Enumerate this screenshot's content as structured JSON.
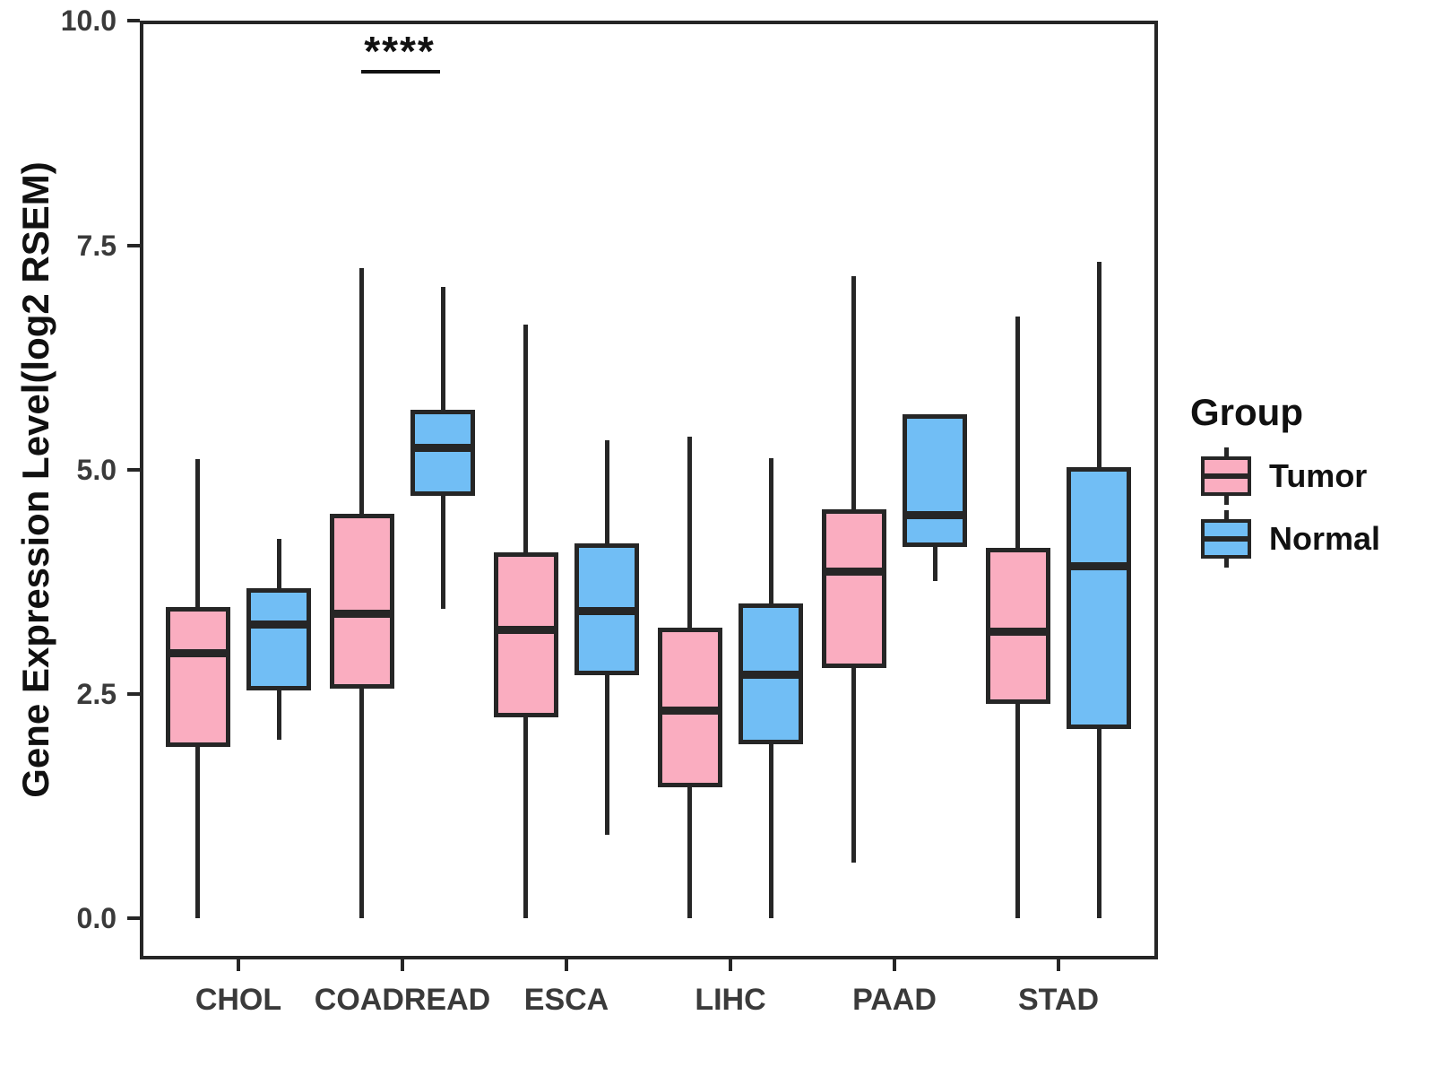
{
  "chart_data": {
    "type": "boxplot",
    "title": "",
    "xlabel": "",
    "ylabel": "Gene Expression Level(log2 RSEM)",
    "ylim": [
      0,
      10
    ],
    "grid": false,
    "legend_position": "right",
    "yticks": [
      "0.0",
      "2.5",
      "5.0",
      "7.5",
      "10.0"
    ],
    "ytick_values": [
      0,
      2.5,
      5,
      7.5,
      10
    ],
    "categories": [
      "CHOL",
      "COADREAD",
      "ESCA",
      "LIHC",
      "PAAD",
      "STAD"
    ],
    "series": [
      {
        "name": "Tumor",
        "color": "#FAADC0",
        "boxes": [
          {
            "category": "CHOL",
            "min": 0.0,
            "q1": 1.91,
            "median": 2.96,
            "q3": 3.47,
            "max": 5.12
          },
          {
            "category": "COADREAD",
            "min": 0.0,
            "q1": 2.56,
            "median": 3.39,
            "q3": 4.51,
            "max": 7.25
          },
          {
            "category": "ESCA",
            "min": 0.0,
            "q1": 2.24,
            "median": 3.22,
            "q3": 4.08,
            "max": 6.62
          },
          {
            "category": "LIHC",
            "min": 0.0,
            "q1": 1.46,
            "median": 2.32,
            "q3": 3.24,
            "max": 5.37
          },
          {
            "category": "PAAD",
            "min": 0.62,
            "q1": 2.79,
            "median": 3.86,
            "q3": 4.56,
            "max": 7.16
          },
          {
            "category": "STAD",
            "min": 0.0,
            "q1": 2.39,
            "median": 3.2,
            "q3": 4.13,
            "max": 6.71
          }
        ]
      },
      {
        "name": "Normal",
        "color": "#71BEF5",
        "boxes": [
          {
            "category": "CHOL",
            "min": 1.99,
            "q1": 2.54,
            "median": 3.28,
            "q3": 3.68,
            "max": 4.23
          },
          {
            "category": "COADREAD",
            "min": 3.45,
            "q1": 4.71,
            "median": 5.24,
            "q3": 5.67,
            "max": 7.04
          },
          {
            "category": "ESCA",
            "min": 0.93,
            "q1": 2.71,
            "median": 3.42,
            "q3": 4.18,
            "max": 5.33
          },
          {
            "category": "LIHC",
            "min": 0.0,
            "q1": 1.94,
            "median": 2.72,
            "q3": 3.51,
            "max": 5.13
          },
          {
            "category": "PAAD",
            "min": 3.76,
            "q1": 4.14,
            "median": 4.49,
            "q3": 5.62,
            "max": 5.62
          },
          {
            "category": "STAD",
            "min": 0.0,
            "q1": 2.11,
            "median": 3.92,
            "q3": 5.03,
            "max": 7.32
          }
        ]
      }
    ],
    "annotation": {
      "text": "****",
      "category": "COADREAD",
      "line_y_value": 9.45
    }
  },
  "legend": {
    "title": "Group",
    "items": [
      {
        "label": "Tumor",
        "color": "#FAADC0"
      },
      {
        "label": "Normal",
        "color": "#71BEF5"
      }
    ]
  },
  "colors": {
    "box_border": "#262626",
    "axis": "#262626",
    "tick_text": "#3a3a3a",
    "title_text": "#111111",
    "background": "#ffffff"
  }
}
